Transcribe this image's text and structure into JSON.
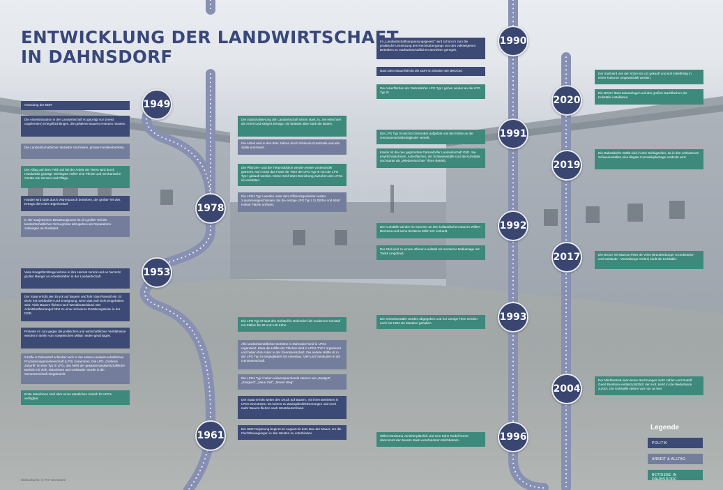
{
  "title_lines": [
    "ENTWICKLUNG DER LANDWIRTSCHAFT",
    "IN DAHNSDORF"
  ],
  "colors": {
    "politik": "#3c4a75",
    "arbeit_alltag": "#747e9c",
    "betrieb": "#3d8a7c",
    "road": "#8790b2",
    "year_circle": "#3a4670"
  },
  "years": [
    "1949",
    "1978",
    "1953",
    "1961",
    "1990",
    "1991",
    "1992",
    "1993",
    "1996",
    "2020",
    "2019",
    "2017",
    "2004"
  ],
  "entries": [
    {
      "text": "Gründung der DDR",
      "category": "politik"
    },
    {
      "text": "Die Arbeitssituation in der Landwirtschaft ist geprägt von (meist ungelernten) Kriegsflüchtlingen, die gefallene Bauern ersetzen müssen.",
      "category": "politik"
    },
    {
      "text": "Die Landwirtschaftlichen Betriebe sind kleine, private Familienbetriebe.",
      "category": "arbeit"
    },
    {
      "text": "Der Alltag auf dem Feld und bei der Arbeit mit Tieren wird durch Handarbeit geprägt. Wichtigste Helfer sind Pferde und mechanische Geräte wie Sensen und Pflüge.",
      "category": "betrieb"
    },
    {
      "text": "Handel wird stark durch Warentausch betrieben, der größte Teil des Ertrags dient dem Eigenbedarf.",
      "category": "politik"
    },
    {
      "text": "In der sowjetischen Besatzungszone ist ein großer Teil der landwirtschaftlichen Erzeugnisse abzugeben als Reparations-zahlungen an Russland.",
      "category": "arbeit"
    },
    {
      "text": "Viele Kriegsflüchtlinge kehren in ihre Heimat zurück und es herrscht großer Mangel an Arbeitskräften in der Landwirtschaft.",
      "category": "politik"
    },
    {
      "text": "Der Staat erhöht den Druck auf Bauern und führt das Plansoll ein. Er droht mit Geldbußen und Enteignung, wenn das Soll nicht eingehalten wird. Viele Bauern fliehen nach Westdeutschland. Der Arbeitskräftemangel führt zu einer schweren Ernährungskrise in der DDR.",
      "category": "politik"
    },
    {
      "text": "Proteste im Juni gegen die politischen und wirtschaftlichen Verhältnisse werden in Berlin vom sowjetischen Militär nieder-geschlagen.",
      "category": "politik"
    },
    {
      "text": "9 Höfe in Dahnsdorf schließen sich in der ersten Landwirt-schaftlichen Produktionsgenossenschaft (LPG) zusammen. Die LPG „Goldene Zukunft“ ist eine Typ III LPG, das heißt der gesamte landwirtschaftliche Betrieb mit Vieh, Maschinen und Gebäuden wurde in die Genossenschaft eingebracht.",
      "category": "arbeit"
    },
    {
      "text": "Erste Maschinen sind über einen staatlichen Verleih für LPGs verfügbar.",
      "category": "betrieb"
    },
    {
      "text": "Die Industrialisierung der Landwirtschaft nimmt stark zu. Sie erleichtert die Arbeit und steigert Erträge, sie belastet aber stark die Böden.",
      "category": "betrieb"
    },
    {
      "text": "Die Arbeit wird in den 80er Jahren durch fehlende Ersatzteile und alte Ställe erschwert.",
      "category": "arbeit"
    },
    {
      "text": "Die Pflanzen- und die Tierproduktion werden weiter voneinander getrennt. Nun muss das Futter für Tiere der LPG Typ III von der LPG Typ I gekauft werden. Diese Geld-Ware-Beziehung zwischen den LPGs ist umstritten.",
      "category": "betrieb"
    },
    {
      "text": "Die LPGs Typ I werden unter dem Effizienzgedanken weiter zusammengeschlossen, bis die einzige LPG Typ I 11 Dörfer und 6500 Hektar Fläche umfasst.",
      "category": "arbeit"
    },
    {
      "text": "Die LPG Typ III baut den Kuhstall in Dahnsdorf als modernen Kuhstall mit Ställen für 90 und 140 Kühe.",
      "category": "betrieb"
    },
    {
      "text": "Alle landwirtschaftlichen Betriebe in Dahnsdorf sind in LPGs organisiert. Etwa die Hälfte der Flächen sind in LPGs TYP I organisiert und haben ihre Acker in der Genossenschaft. Die andere Hälfte ist in der LPG Typ III eingegliedert mit Ackerbau, Vieh und Gebäuden in der Genossenschaft.",
      "category": "arbeit"
    },
    {
      "text": "Die LPGs Typ I haben vielversprechende Namen wie „Saatgut“, „Einigkeit“, „Neue Zeit“, „Neuer Weg“.",
      "category": "arbeit"
    },
    {
      "text": "Der Staat erhöht weiter den Druck auf Bauern, mit ihren Betrieben in LPGs einzutreten. Es kommt zu Zwangskollektivierungen und noch mehr Bauern fliehen nach Westdeutschland.",
      "category": "politik"
    },
    {
      "text": "Die SED-Regierung beginnt im August mit dem Bau der Mauer, um die Fluchtbewegungen in den Westen zu unterbinden.",
      "category": "politik"
    },
    {
      "text": "Im „Landwirtschaftsanpassungsgesetz“ wird schon im Juni die praktische Umsetzung des Rechtsübergangs von den volkseigenen Betrieben zu marktwirtschaftlichen Betrieben geregelt.",
      "category": "politik"
    },
    {
      "text": "Nach dem Mauerfall tritt die DDR im Oktober der BRD bei.",
      "category": "politik"
    },
    {
      "text": "Die Ackerflächen der Dahnsdorfer LPG Typ I gehen wieder an die LPG Typ III.",
      "category": "betrieb"
    },
    {
      "text": "Die LPG Typ III wird im Dezember aufgelöst und die Erlöse an die Genossenschaftsmitglieder verteilt.",
      "category": "betrieb"
    },
    {
      "text": "Käufer ist die neu gegründete Dahnsdorfer Landwirtschaft GbR. Sie erwirbt Maschinen, Ackerflächen, die Schweineställe und die Kuhställe und startet als „Wiedereinrichter“ ihren Betrieb.",
      "category": "betrieb"
    },
    {
      "text": "Die Kuhställe werden im Sommer an den holländischen Bauern Willem Breitsma und seine Breitsma Milch KG verkauft.",
      "category": "betrieb"
    },
    {
      "text": "Der Stall wird zu einem offenen Laufstall mit moderner Melkanlage mit Tanks umgebaut.",
      "category": "betrieb"
    },
    {
      "text": "Die Schweineställe werden abgegeben und nur wenige Tiere werden noch bis 1994 als Mastiere gehalten.",
      "category": "betrieb"
    },
    {
      "text": "Willem Breitsma verstirbt plötzlich und sein Sohn Rudolf Geert übernimmt den bereits stark verschuldeten Milchbetrieb.",
      "category": "betrieb"
    },
    {
      "text": "Der Stall wird von der Schm-So UG gekauft und soll mittelfristig in einen Kulturort umgewandelt werden.",
      "category": "betrieb"
    },
    {
      "text": "Die BGGV lässt Solaranlagen auf den großen Dachflächen der Kuhställe installieren.",
      "category": "betrieb"
    },
    {
      "text": "Die Dahnsdorfer Ställe sind in den Schlagzeilen, da in den verlassenen Schweineställen eine illegale Cannabisplantage entdeckt wird.",
      "category": "betrieb"
    },
    {
      "text": "Die BGGV mit Marcus Peter de Vries (Brandenburger Grundstücks- und Gebäude - Verwaltungs GmbH) kauft die Kuhställe.",
      "category": "betrieb"
    },
    {
      "text": "Der Milchbetrieb kann keine Rechnungen mehr zahlen und Rudolf Geert Breitsma verlässt plötzlich den Hof, kehrt in die Niederlande zurück. Die Kuhställe stehen von nun an leer.",
      "category": "betrieb"
    }
  ],
  "legend": {
    "title": "Legende",
    "items": [
      "POLITIK",
      "ARBEIT & ALLTAG",
      "BETRIEBE IN DAHNSDORF"
    ]
  },
  "credit": "Bildnachweis: © Pim Van Baarle"
}
